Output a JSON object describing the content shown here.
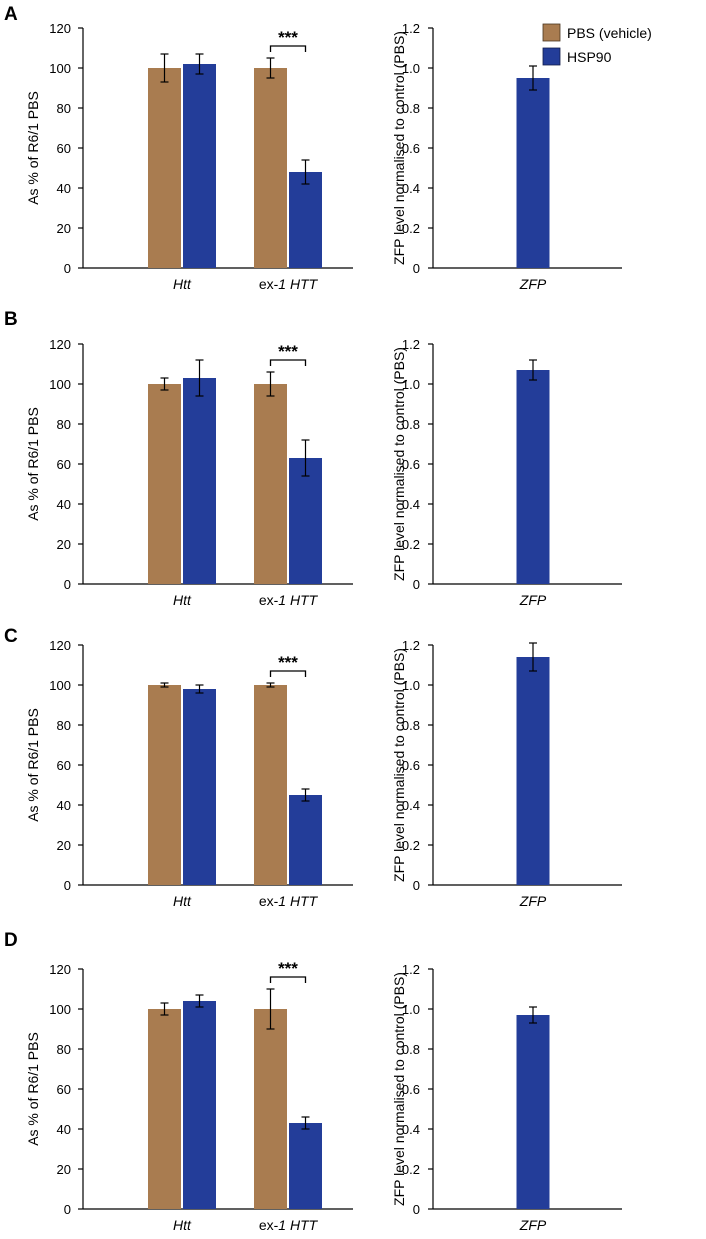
{
  "figure": {
    "legend": [
      {
        "label": "PBS (vehicle)",
        "color": "#A97C50"
      },
      {
        "label": "HSP90",
        "color": "#233D99"
      }
    ],
    "ylabel_left": "As % of R6/1 PBS",
    "ylabel_right": "ZFP level normalised to control (PBS)",
    "significance": "***"
  },
  "chart_data": [
    {
      "panel": "A",
      "type": "bar",
      "title": "",
      "categories": [
        "Htt",
        "ex-1 HTT"
      ],
      "category_parts": [
        {
          "italic": "Htt"
        },
        {
          "plain": "ex-",
          "italic": "1 HTT"
        }
      ],
      "series": [
        {
          "name": "PBS (vehicle)",
          "values": [
            100,
            100
          ],
          "errors": [
            7,
            5
          ]
        },
        {
          "name": "HSP90",
          "values": [
            102,
            48
          ],
          "errors": [
            5,
            6
          ]
        }
      ],
      "ylabel": "As % of R6/1 PBS",
      "ylim": [
        0,
        120
      ],
      "yticks": [
        "0",
        "20",
        "40",
        "60",
        "80",
        "100",
        "120"
      ],
      "significance": {
        "category": "ex-1 HTT",
        "label": "***"
      }
    },
    {
      "panel": "A",
      "type": "bar",
      "categories": [
        "ZFP"
      ],
      "series": [
        {
          "name": "HSP90",
          "values": [
            0.95
          ],
          "errors": [
            0.06
          ]
        }
      ],
      "ylabel": "ZFP level normalised to control (PBS)",
      "ylim": [
        0,
        1.2
      ],
      "yticks": [
        "0",
        "0.2",
        "0.4",
        "0.6",
        "0.8",
        "1.0",
        "1.2"
      ]
    },
    {
      "panel": "B",
      "type": "bar",
      "categories": [
        "Htt",
        "ex-1 HTT"
      ],
      "category_parts": [
        {
          "italic": "Htt"
        },
        {
          "plain": "ex-",
          "italic": "1 HTT"
        }
      ],
      "series": [
        {
          "name": "PBS (vehicle)",
          "values": [
            100,
            100
          ],
          "errors": [
            3,
            6
          ]
        },
        {
          "name": "HSP90",
          "values": [
            103,
            63
          ],
          "errors": [
            9,
            9
          ]
        }
      ],
      "ylabel": "As % of R6/1 PBS",
      "ylim": [
        0,
        120
      ],
      "yticks": [
        "0",
        "20",
        "40",
        "60",
        "80",
        "100",
        "120"
      ],
      "significance": {
        "category": "ex-1 HTT",
        "label": "***"
      }
    },
    {
      "panel": "B",
      "type": "bar",
      "categories": [
        "ZFP"
      ],
      "series": [
        {
          "name": "HSP90",
          "values": [
            1.07
          ],
          "errors": [
            0.05
          ]
        }
      ],
      "ylabel": "ZFP level normalised to control (PBS)",
      "ylim": [
        0,
        1.2
      ],
      "yticks": [
        "0",
        "0.2",
        "0.4",
        "0.6",
        "0.8",
        "1.0",
        "1.2"
      ]
    },
    {
      "panel": "C",
      "type": "bar",
      "categories": [
        "Htt",
        "ex-1 HTT"
      ],
      "category_parts": [
        {
          "italic": "Htt"
        },
        {
          "plain": "ex-",
          "italic": "1 HTT"
        }
      ],
      "series": [
        {
          "name": "PBS (vehicle)",
          "values": [
            100,
            100
          ],
          "errors": [
            1,
            1
          ]
        },
        {
          "name": "HSP90",
          "values": [
            98,
            45
          ],
          "errors": [
            2,
            3
          ]
        }
      ],
      "ylabel": "As % of R6/1 PBS",
      "ylim": [
        0,
        120
      ],
      "yticks": [
        "0",
        "20",
        "40",
        "60",
        "80",
        "100",
        "120"
      ],
      "significance": {
        "category": "ex-1 HTT",
        "label": "***"
      }
    },
    {
      "panel": "C",
      "type": "bar",
      "categories": [
        "ZFP"
      ],
      "series": [
        {
          "name": "HSP90",
          "values": [
            1.14
          ],
          "errors": [
            0.07
          ]
        }
      ],
      "ylabel": "ZFP level normalised to control (PBS)",
      "ylim": [
        0,
        1.2
      ],
      "yticks": [
        "0",
        "0.2",
        "0.4",
        "0.6",
        "0.8",
        "1.0",
        "1.2"
      ]
    },
    {
      "panel": "D",
      "type": "bar",
      "categories": [
        "Htt",
        "ex-1 HTT"
      ],
      "category_parts": [
        {
          "italic": "Htt"
        },
        {
          "plain": "ex-",
          "italic": "1 HTT"
        }
      ],
      "series": [
        {
          "name": "PBS (vehicle)",
          "values": [
            100,
            100
          ],
          "errors": [
            3,
            10
          ]
        },
        {
          "name": "HSP90",
          "values": [
            104,
            43
          ],
          "errors": [
            3,
            3
          ]
        }
      ],
      "ylabel": "As % of R6/1 PBS",
      "ylim": [
        0,
        120
      ],
      "yticks": [
        "0",
        "20",
        "40",
        "60",
        "80",
        "100",
        "120"
      ],
      "significance": {
        "category": "ex-1 HTT",
        "label": "***"
      }
    },
    {
      "panel": "D",
      "type": "bar",
      "categories": [
        "ZFP"
      ],
      "series": [
        {
          "name": "HSP90",
          "values": [
            0.97
          ],
          "errors": [
            0.04
          ]
        }
      ],
      "ylabel": "ZFP level normalised to control (PBS)",
      "ylim": [
        0,
        1.2
      ],
      "yticks": [
        "0",
        "0.2",
        "0.4",
        "0.6",
        "0.8",
        "1.0",
        "1.2"
      ]
    }
  ]
}
